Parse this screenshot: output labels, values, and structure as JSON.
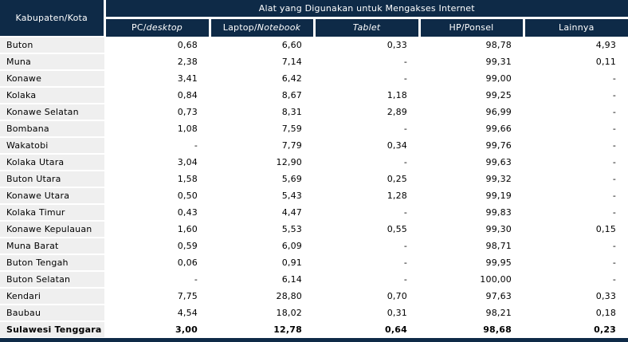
{
  "table": {
    "corner_header": "Kabupaten/Kota",
    "group_header": "Alat yang Digunakan untuk Mengakses Internet",
    "columns": [
      {
        "plain": "PC/",
        "italic": "desktop"
      },
      {
        "plain": "Laptop/",
        "italic": "Notebook"
      },
      {
        "plain": "",
        "italic": "Tablet"
      },
      {
        "plain": "HP/Ponsel",
        "italic": ""
      },
      {
        "plain": "Lainnya",
        "italic": ""
      }
    ],
    "rows": [
      {
        "region": "Buton",
        "values": [
          "0,68",
          "6,60",
          "0,33",
          "98,78",
          "4,93"
        ],
        "bold": false
      },
      {
        "region": "Muna",
        "values": [
          "2,38",
          "7,14",
          "-",
          "99,31",
          "0,11"
        ],
        "bold": false
      },
      {
        "region": "Konawe",
        "values": [
          "3,41",
          "6,42",
          "-",
          "99,00",
          "-"
        ],
        "bold": false
      },
      {
        "region": "Kolaka",
        "values": [
          "0,84",
          "8,67",
          "1,18",
          "99,25",
          "-"
        ],
        "bold": false
      },
      {
        "region": "Konawe Selatan",
        "values": [
          "0,73",
          "8,31",
          "2,89",
          "96,99",
          "-"
        ],
        "bold": false
      },
      {
        "region": "Bombana",
        "values": [
          "1,08",
          "7,59",
          "-",
          "99,66",
          "-"
        ],
        "bold": false
      },
      {
        "region": "Wakatobi",
        "values": [
          "-",
          "7,79",
          "0,34",
          "99,76",
          "-"
        ],
        "bold": false
      },
      {
        "region": "Kolaka Utara",
        "values": [
          "3,04",
          "12,90",
          "-",
          "99,63",
          "-"
        ],
        "bold": false
      },
      {
        "region": "Buton Utara",
        "values": [
          "1,58",
          "5,69",
          "0,25",
          "99,32",
          "-"
        ],
        "bold": false
      },
      {
        "region": "Konawe Utara",
        "values": [
          "0,50",
          "5,43",
          "1,28",
          "99,19",
          "-"
        ],
        "bold": false
      },
      {
        "region": "Kolaka Timur",
        "values": [
          "0,43",
          "4,47",
          "-",
          "99,83",
          "-"
        ],
        "bold": false
      },
      {
        "region": "Konawe Kepulauan",
        "values": [
          "1,60",
          "5,53",
          "0,55",
          "99,30",
          "0,15"
        ],
        "bold": false
      },
      {
        "region": "Muna Barat",
        "values": [
          "0,59",
          "6,09",
          "-",
          "98,71",
          "-"
        ],
        "bold": false
      },
      {
        "region": "Buton Tengah",
        "values": [
          "0,06",
          "0,91",
          "-",
          "99,95",
          "-"
        ],
        "bold": false
      },
      {
        "region": "Buton Selatan",
        "values": [
          "-",
          "6,14",
          "-",
          "100,00",
          "-"
        ],
        "bold": false
      },
      {
        "region": "Kendari",
        "values": [
          "7,75",
          "28,80",
          "0,70",
          "97,63",
          "0,33"
        ],
        "bold": false
      },
      {
        "region": "Baubau",
        "values": [
          "4,54",
          "18,02",
          "0,31",
          "98,21",
          "0,18"
        ],
        "bold": false
      },
      {
        "region": "Sulawesi Tenggara",
        "values": [
          "3,00",
          "12,78",
          "0,64",
          "98,68",
          "0,23"
        ],
        "bold": true
      }
    ]
  },
  "colors": {
    "header_bg": "#0e2a47",
    "header_text": "#ffffff",
    "row_label_bg": "#efefef",
    "body_text": "#000000"
  }
}
